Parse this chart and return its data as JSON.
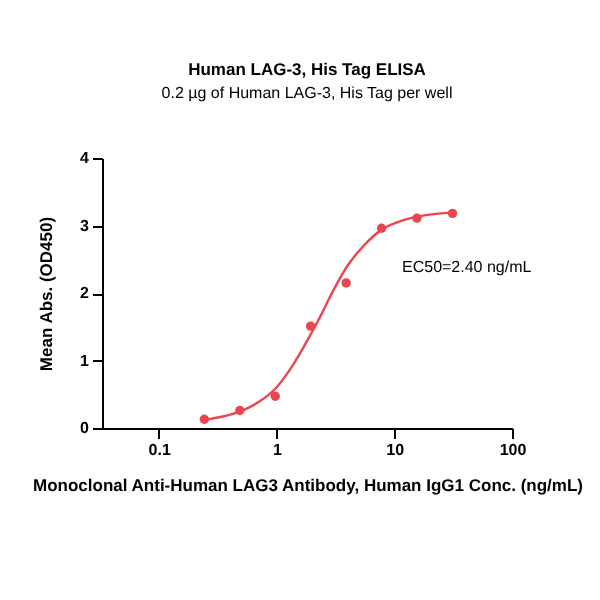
{
  "chart_data": {
    "type": "scatter",
    "title": "Human LAG-3, His Tag ELISA",
    "subtitle": "0.2 µg of Human LAG-3, His Tag per well",
    "xlabel": "Monoclonal Anti-Human LAG3 Antibody, Human IgG1 Conc. (ng/mL)",
    "ylabel": "Mean Abs. (OD450)",
    "annotations": [
      "EC50=2.40 ng/mL"
    ],
    "log": "x",
    "xlim": [
      0.033,
      100
    ],
    "xticks": [
      0.1,
      1,
      10,
      100
    ],
    "ylim": [
      0,
      4
    ],
    "yticks": [
      0,
      1,
      2,
      3,
      4
    ],
    "grid": false,
    "marker": "circle",
    "series": [
      {
        "color": "#e8474f",
        "x": [
          0.244,
          0.488,
          0.977,
          1.95,
          3.91,
          7.81,
          15.6,
          31.25
        ],
        "values": [
          0.13,
          0.26,
          0.47,
          1.51,
          2.15,
          2.96,
          3.11,
          3.18
        ]
      },
      {
        "type": "line",
        "marker": "none",
        "color": "#e8474f",
        "x": [
          0.244,
          0.35,
          0.5,
          0.7,
          1,
          1.4,
          2,
          2.4,
          3,
          4,
          5.5,
          8,
          12,
          18,
          31.25
        ],
        "values": [
          0.12,
          0.17,
          0.25,
          0.38,
          0.6,
          0.95,
          1.42,
          1.68,
          2.02,
          2.4,
          2.7,
          2.95,
          3.08,
          3.15,
          3.19
        ]
      }
    ]
  }
}
